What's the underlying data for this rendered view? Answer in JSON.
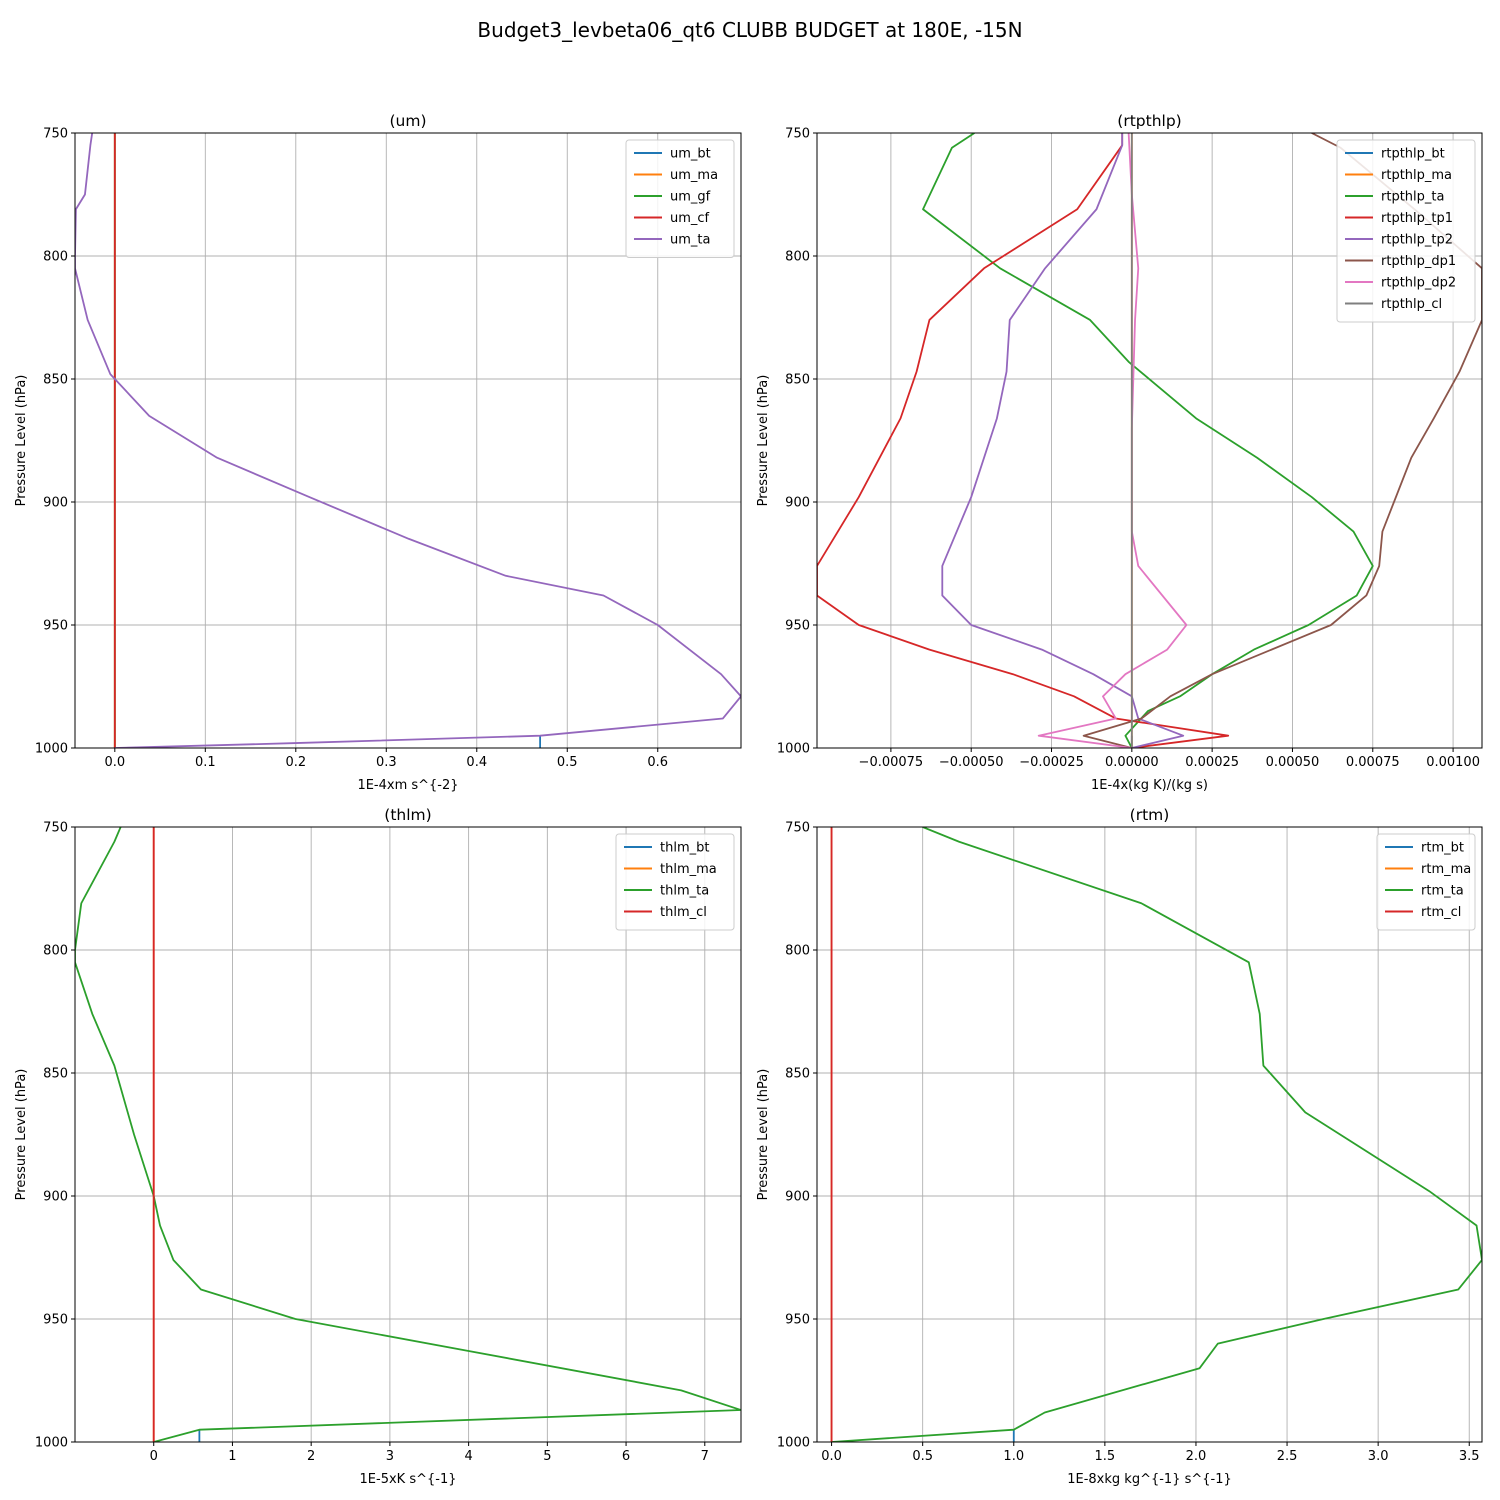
{
  "figure": {
    "title": "Budget3_levbeta06_qt6 CLUBB BUDGET at 180E, -15N"
  },
  "chart_data": [
    {
      "type": "line",
      "title": "(um)",
      "xlabel": "1E-4xm s^{-2}",
      "ylabel": "Pressure Level (hPa)",
      "xlim": [
        -0.044,
        0.692
      ],
      "ylim": [
        1000,
        750
      ],
      "xticks": [
        0.0,
        0.1,
        0.2,
        0.3,
        0.4,
        0.5,
        0.6
      ],
      "xtick_labels": [
        "0.0",
        "0.1",
        "0.2",
        "0.3",
        "0.4",
        "0.5",
        "0.6"
      ],
      "yticks": [
        750,
        800,
        850,
        900,
        950,
        1000
      ],
      "grid": true,
      "legend_position": "top-right",
      "series": [
        {
          "name": "um_bt",
          "color": "#1f77b4",
          "points": [
            [
              0.47,
              1000
            ],
            [
              0.47,
              995
            ]
          ]
        },
        {
          "name": "um_ma",
          "color": "#ff7f0e",
          "points": [
            [
              0.0,
              1000
            ],
            [
              0.0,
              750
            ]
          ]
        },
        {
          "name": "um_gf",
          "color": "#2ca02c",
          "points": [
            [
              0.0,
              1000
            ],
            [
              0.0,
              750
            ]
          ]
        },
        {
          "name": "um_cf",
          "color": "#d62728",
          "points": [
            [
              0.0,
              1000
            ],
            [
              0.0,
              750
            ]
          ]
        },
        {
          "name": "um_ta",
          "color": "#9467bd",
          "points": [
            [
              -0.025,
              750
            ],
            [
              -0.027,
              755
            ],
            [
              -0.033,
              775
            ],
            [
              -0.043,
              781
            ],
            [
              -0.044,
              800
            ],
            [
              -0.044,
              805
            ],
            [
              -0.03,
              826
            ],
            [
              -0.005,
              848
            ],
            [
              0.038,
              865
            ],
            [
              0.113,
              882
            ],
            [
              0.215,
              898
            ],
            [
              0.325,
              915
            ],
            [
              0.432,
              930
            ],
            [
              0.54,
              938
            ],
            [
              0.6,
              950
            ],
            [
              0.67,
              970
            ],
            [
              0.692,
              979
            ],
            [
              0.672,
              988
            ],
            [
              0.47,
              995
            ],
            [
              0.2,
              998
            ],
            [
              0.0,
              1000
            ]
          ]
        }
      ]
    },
    {
      "type": "line",
      "title": "(rtpthlp)",
      "xlabel": "1E-4x(kg K)/(kg s)",
      "ylabel": "Pressure Level (hPa)",
      "xlim": [
        -0.00098,
        0.00109
      ],
      "ylim": [
        1000,
        750
      ],
      "xticks": [
        -0.00075,
        -0.0005,
        -0.00025,
        0.0,
        0.00025,
        0.0005,
        0.00075,
        0.001
      ],
      "xtick_labels": [
        "−0.00075",
        "−0.00050",
        "−0.00025",
        "0.00000",
        "0.00025",
        "0.00050",
        "0.00075",
        "0.00100"
      ],
      "yticks": [
        750,
        800,
        850,
        900,
        950,
        1000
      ],
      "grid": true,
      "legend_position": "top-right",
      "series": [
        {
          "name": "rtpthlp_bt",
          "color": "#1f77b4",
          "points": [
            [
              0.0,
              1000
            ],
            [
              0.0,
              995
            ]
          ]
        },
        {
          "name": "rtpthlp_ma",
          "color": "#ff7f0e",
          "points": [
            [
              0.0,
              1000
            ],
            [
              0.0,
              750
            ]
          ]
        },
        {
          "name": "rtpthlp_ta",
          "color": "#2ca02c",
          "points": [
            [
              -0.00049,
              750
            ],
            [
              -0.00056,
              756
            ],
            [
              -0.00065,
              781
            ],
            [
              -0.00041,
              805
            ],
            [
              -0.00013,
              826
            ],
            [
              -1e-05,
              843
            ],
            [
              0.0002,
              866
            ],
            [
              0.00039,
              882
            ],
            [
              0.00056,
              898
            ],
            [
              0.00069,
              912
            ],
            [
              0.00075,
              926
            ],
            [
              0.0007,
              938
            ],
            [
              0.00055,
              950
            ],
            [
              0.00038,
              960
            ],
            [
              0.00025,
              970
            ],
            [
              0.00015,
              979
            ],
            [
              5e-05,
              985
            ],
            [
              -2e-05,
              995
            ],
            [
              0.0,
              1000
            ]
          ]
        },
        {
          "name": "rtpthlp_tp1",
          "color": "#d62728",
          "points": [
            [
              -3e-05,
              750
            ],
            [
              -3e-05,
              755
            ],
            [
              -0.00017,
              781
            ],
            [
              -0.00046,
              805
            ],
            [
              -0.00063,
              826
            ],
            [
              -0.00067,
              847
            ],
            [
              -0.00072,
              866
            ],
            [
              -0.00085,
              898
            ],
            [
              -0.00098,
              926
            ],
            [
              -0.00098,
              938
            ],
            [
              -0.00085,
              950
            ],
            [
              -0.00063,
              960
            ],
            [
              -0.00037,
              970
            ],
            [
              -0.00018,
              979
            ],
            [
              -5e-05,
              988
            ],
            [
              0.0003,
              995
            ],
            [
              0.0,
              1000
            ]
          ]
        },
        {
          "name": "rtpthlp_tp2",
          "color": "#9467bd",
          "points": [
            [
              -3e-05,
              750
            ],
            [
              -3e-05,
              755
            ],
            [
              -0.00011,
              781
            ],
            [
              -0.00027,
              805
            ],
            [
              -0.00038,
              826
            ],
            [
              -0.00039,
              847
            ],
            [
              -0.00042,
              866
            ],
            [
              -0.0005,
              898
            ],
            [
              -0.00059,
              926
            ],
            [
              -0.00059,
              938
            ],
            [
              -0.0005,
              950
            ],
            [
              -0.00028,
              960
            ],
            [
              -0.00012,
              970
            ],
            [
              0.0,
              979
            ],
            [
              2e-05,
              988
            ],
            [
              0.00016,
              995
            ],
            [
              0.0,
              1000
            ]
          ]
        },
        {
          "name": "rtpthlp_dp1",
          "color": "#8c564b",
          "points": [
            [
              0.00056,
              750
            ],
            [
              0.00065,
              756
            ],
            [
              0.00088,
              781
            ],
            [
              0.00109,
              805
            ],
            [
              0.00109,
              826
            ],
            [
              0.00102,
              847
            ],
            [
              0.00094,
              866
            ],
            [
              0.00087,
              882
            ],
            [
              0.00078,
              912
            ],
            [
              0.00077,
              926
            ],
            [
              0.00073,
              938
            ],
            [
              0.00062,
              950
            ],
            [
              0.00025,
              970
            ],
            [
              0.00012,
              979
            ],
            [
              3e-05,
              988
            ],
            [
              -0.00015,
              995
            ],
            [
              0.0,
              1000
            ]
          ]
        },
        {
          "name": "rtpthlp_dp2",
          "color": "#e377c2",
          "points": [
            [
              -1e-05,
              750
            ],
            [
              0.0,
              775
            ],
            [
              2e-05,
              805
            ],
            [
              1e-05,
              826
            ],
            [
              0.0,
              870
            ],
            [
              0.0,
              912
            ],
            [
              2e-05,
              926
            ],
            [
              0.00017,
              950
            ],
            [
              0.00011,
              960
            ],
            [
              -2e-05,
              970
            ],
            [
              -9e-05,
              979
            ],
            [
              -5e-05,
              988
            ],
            [
              -0.00029,
              995
            ],
            [
              0.0,
              1000
            ]
          ]
        },
        {
          "name": "rtpthlp_cl",
          "color": "#7f7f7f",
          "points": [
            [
              0.0,
              1000
            ],
            [
              0.0,
              750
            ]
          ]
        }
      ]
    },
    {
      "type": "line",
      "title": "(thlm)",
      "xlabel": "1E-5xK s^{-1}",
      "ylabel": "Pressure Level (hPa)",
      "xlim": [
        -1.0,
        7.46
      ],
      "ylim": [
        1000,
        750
      ],
      "xticks": [
        0,
        1,
        2,
        3,
        4,
        5,
        6,
        7
      ],
      "xtick_labels": [
        "0",
        "1",
        "2",
        "3",
        "4",
        "5",
        "6",
        "7"
      ],
      "yticks": [
        750,
        800,
        850,
        900,
        950,
        1000
      ],
      "grid": true,
      "legend_position": "top-right",
      "series": [
        {
          "name": "thlm_bt",
          "color": "#1f77b4",
          "points": [
            [
              0.58,
              1000
            ],
            [
              0.58,
              995
            ]
          ]
        },
        {
          "name": "thlm_ma",
          "color": "#ff7f0e",
          "points": [
            [
              0.0,
              1000
            ],
            [
              0.0,
              750
            ]
          ]
        },
        {
          "name": "thlm_ta",
          "color": "#2ca02c",
          "points": [
            [
              -0.42,
              750
            ],
            [
              -0.5,
              756
            ],
            [
              -0.92,
              781
            ],
            [
              -1.0,
              800
            ],
            [
              -1.0,
              805
            ],
            [
              -0.78,
              826
            ],
            [
              -0.5,
              847
            ],
            [
              -0.25,
              875
            ],
            [
              0.0,
              900
            ],
            [
              0.08,
              912
            ],
            [
              0.25,
              926
            ],
            [
              0.6,
              938
            ],
            [
              1.8,
              950
            ],
            [
              4.0,
              963
            ],
            [
              6.7,
              979
            ],
            [
              7.46,
              987
            ],
            [
              0.58,
              995
            ],
            [
              0.0,
              1000
            ]
          ]
        },
        {
          "name": "thlm_cl",
          "color": "#d62728",
          "points": [
            [
              0.0,
              1000
            ],
            [
              0.0,
              750
            ]
          ]
        }
      ]
    },
    {
      "type": "line",
      "title": "(rtm)",
      "xlabel": "1E-8xkg kg^{-1} s^{-1}",
      "ylabel": "Pressure Level (hPa)",
      "xlim": [
        -0.08,
        3.57
      ],
      "ylim": [
        1000,
        750
      ],
      "xticks": [
        0.0,
        0.5,
        1.0,
        1.5,
        2.0,
        2.5,
        3.0,
        3.5
      ],
      "xtick_labels": [
        "0.0",
        "0.5",
        "1.0",
        "1.5",
        "2.0",
        "2.5",
        "3.0",
        "3.5"
      ],
      "yticks": [
        750,
        800,
        850,
        900,
        950,
        1000
      ],
      "grid": true,
      "legend_position": "top-right",
      "series": [
        {
          "name": "rtm_bt",
          "color": "#1f77b4",
          "points": [
            [
              1.0,
              1000
            ],
            [
              1.0,
              995
            ]
          ]
        },
        {
          "name": "rtm_ma",
          "color": "#ff7f0e",
          "points": [
            [
              0.0,
              1000
            ],
            [
              0.0,
              750
            ]
          ]
        },
        {
          "name": "rtm_ta",
          "color": "#2ca02c",
          "points": [
            [
              0.5,
              750
            ],
            [
              0.7,
              756
            ],
            [
              1.7,
              781
            ],
            [
              2.29,
              805
            ],
            [
              2.35,
              826
            ],
            [
              2.37,
              847
            ],
            [
              2.6,
              866
            ],
            [
              3.28,
              898
            ],
            [
              3.54,
              912
            ],
            [
              3.57,
              926
            ],
            [
              3.44,
              938
            ],
            [
              2.7,
              950
            ],
            [
              2.12,
              960
            ],
            [
              2.02,
              970
            ],
            [
              1.17,
              988
            ],
            [
              1.0,
              995
            ],
            [
              0.0,
              1000
            ]
          ]
        },
        {
          "name": "rtm_cl",
          "color": "#d62728",
          "points": [
            [
              0.0,
              1000
            ],
            [
              0.0,
              750
            ]
          ]
        }
      ]
    }
  ]
}
